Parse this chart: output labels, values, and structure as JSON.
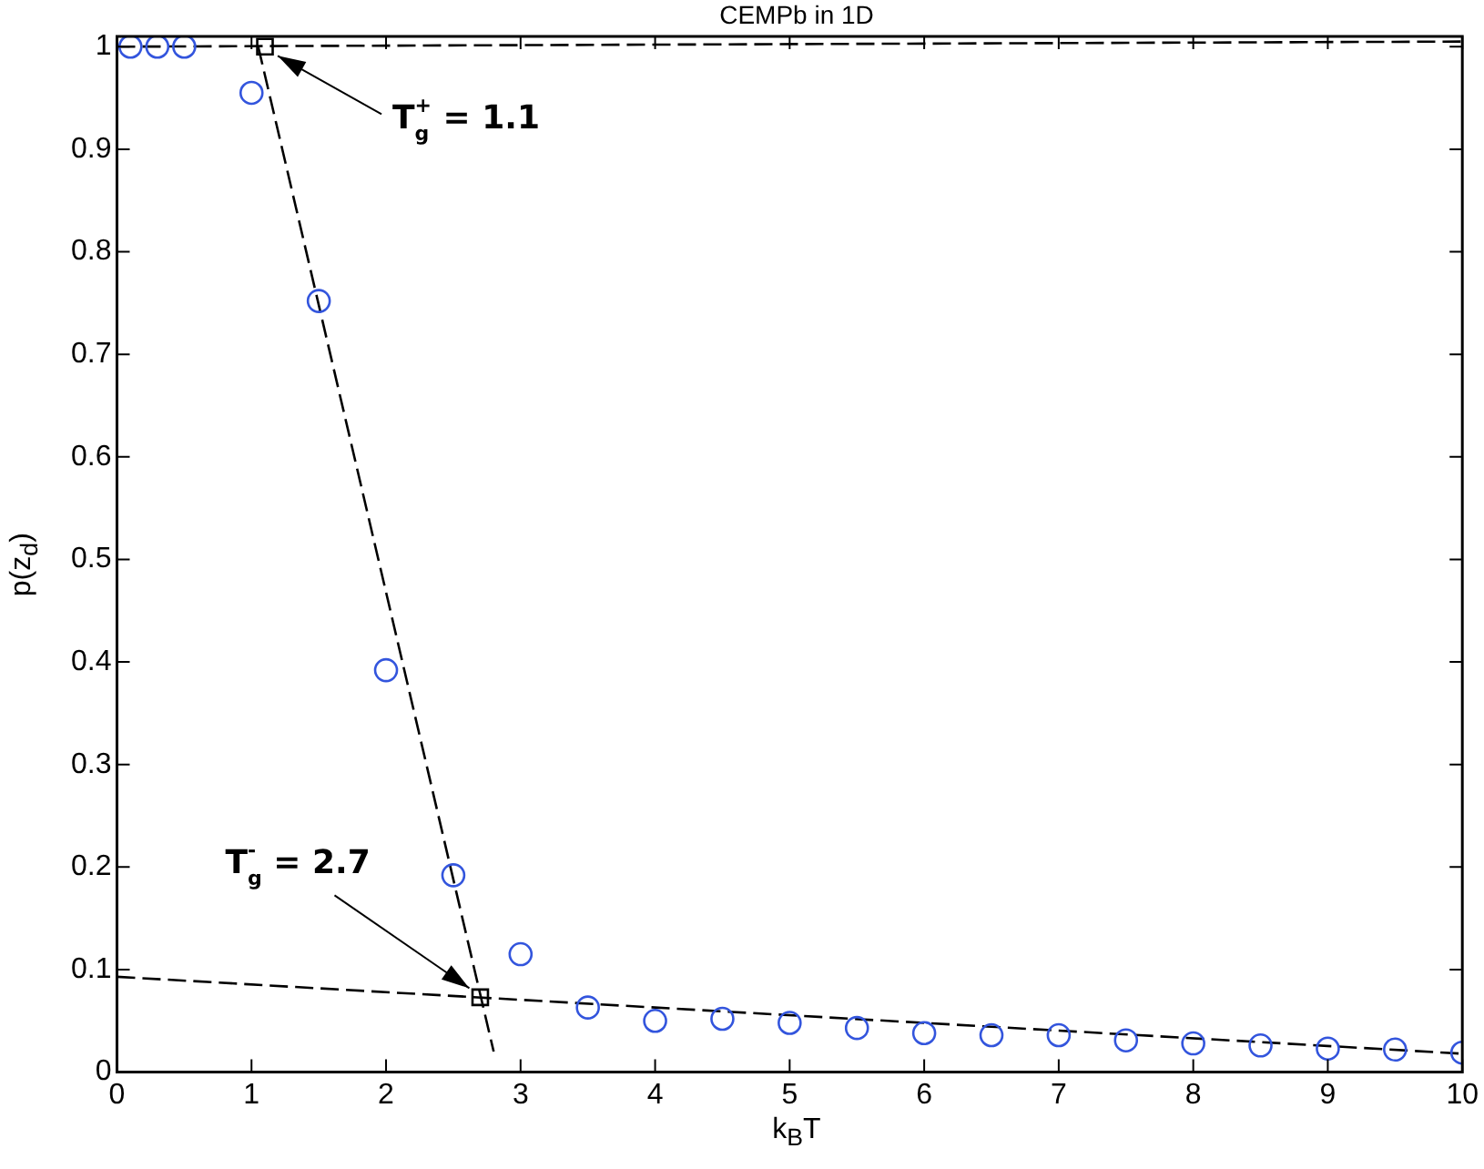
{
  "chart_data": {
    "type": "scatter",
    "title": "CEMPb in 1D",
    "xlabel": "k$_{B}$T",
    "ylabel": "p(z$_{d}$)",
    "xlim": [
      0,
      10
    ],
    "xticks": [
      0,
      1,
      2,
      3,
      4,
      5,
      6,
      7,
      8,
      9,
      10
    ],
    "ylim": [
      0,
      1.01
    ],
    "yticks": [
      0,
      0.1,
      0.2,
      0.3,
      0.4,
      0.5,
      0.6,
      0.7,
      0.8,
      0.9,
      1
    ],
    "grid": false,
    "legend": false,
    "series": [
      {
        "marker": "circle",
        "color": "#3355dd",
        "x": [
          0.1,
          0.3,
          0.5,
          1,
          1.5,
          2,
          2.5,
          3,
          3.5,
          4,
          4.5,
          5,
          5.5,
          6,
          6.5,
          7,
          7.5,
          8,
          8.5,
          9,
          9.5,
          10
        ],
        "values": [
          1,
          1,
          1,
          0.955,
          0.752,
          0.392,
          0.192,
          0.115,
          0.063,
          0.05,
          0.052,
          0.048,
          0.043,
          0.038,
          0.036,
          0.036,
          0.031,
          0.028,
          0.026,
          0.023,
          0.022,
          0.019
        ]
      },
      {
        "type": "line",
        "line_style": "dashed",
        "marker": "none",
        "color": "#000000",
        "x": [
          0,
          10
        ],
        "values": [
          1,
          1.005
        ]
      },
      {
        "type": "line",
        "line_style": "dashed",
        "marker": "none",
        "color": "#000000",
        "x": [
          1.05,
          2.8
        ],
        "values": [
          1,
          0.02
        ]
      },
      {
        "type": "line",
        "line_style": "dashed",
        "marker": "none",
        "color": "#000000",
        "x": [
          0,
          10
        ],
        "values": [
          0.093,
          0.018
        ]
      },
      {
        "marker": "square",
        "color": "#000000",
        "x": [
          1.1,
          2.7
        ],
        "values": [
          1,
          0.073
        ]
      }
    ],
    "annotations": [
      {
        "text": "T$_{g}$$^{+}$ = 1.1",
        "x": 1.1,
        "y": 1
      },
      {
        "text": "T$_{g}$$^{-}$ = 2.7",
        "x": 2.7,
        "y": 0.073
      }
    ]
  }
}
